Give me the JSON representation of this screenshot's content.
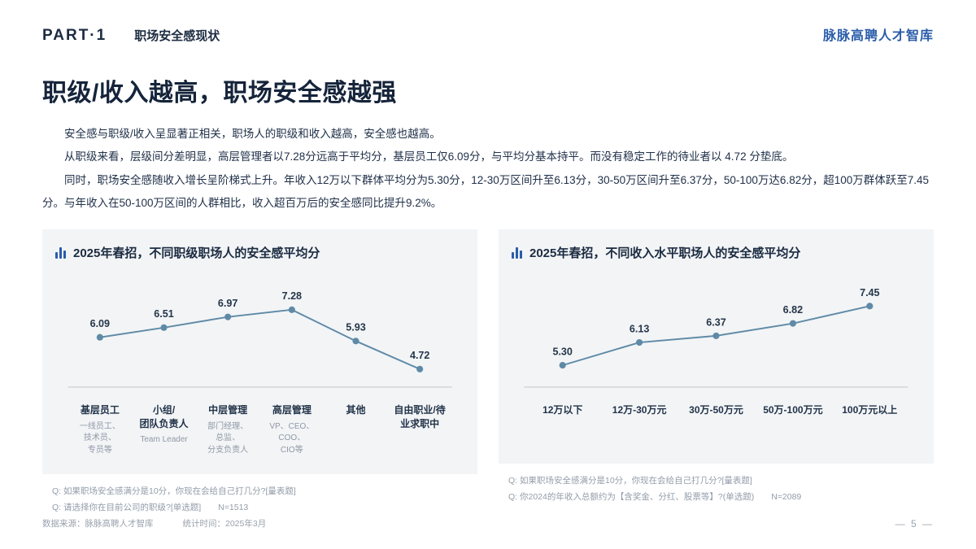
{
  "header": {
    "part": "PART·1",
    "section": "职场安全感现状",
    "brand": "脉脉高聘人才智库"
  },
  "title": "职级/收入越高，职场安全感越强",
  "paragraphs": [
    "安全感与职级/收入呈显著正相关，职场人的职级和收入越高，安全感也越高。",
    "从职级来看，层级间分差明显，高层管理者以7.28分远高于平均分，基层员工仅6.09分，与平均分基本持平。而没有稳定工作的待业者以 4.72 分垫底。",
    "同时，职场安全感随收入增长呈阶梯式上升。年收入12万以下群体平均分为5.30分，12-30万区间升至6.13分，30-50万区间升至6.37分，50-100万达6.82分，超100万群体跃至7.45分。与年收入在50-100万区间的人群相比，收入超百万后的安全感同比提升9.2%。"
  ],
  "colors": {
    "accent_blue": "#2a5caa",
    "line": "#5f8aa6",
    "panel_bg": "#f2f4f6",
    "text_dark": "#1f2f44",
    "muted": "#939daa"
  },
  "chart_data": [
    {
      "type": "line",
      "title": "2025年春招，不同职级职场人的安全感平均分",
      "categories": [
        "基层员工",
        "小组/团队负责人",
        "中层管理",
        "高层管理",
        "其他",
        "自由职业/待\n业求职中"
      ],
      "sublabels": [
        "一线员工、技术员、\n专员等",
        "Team Leader",
        "部门经理、总监、\n分支负责人",
        "VP、CEO、COO、\nCIO等",
        "",
        ""
      ],
      "values": [
        6.09,
        6.51,
        6.97,
        7.28,
        5.93,
        4.72
      ],
      "ylim": [
        4.35,
        8.15
      ],
      "legend": "none",
      "grid": false,
      "notes": [
        "Q: 如果职场安全感满分是10分，你现在会给自己打几分?[量表题]",
        "Q: 请选择你在目前公司的职级?[单选题]　　N=1513"
      ]
    },
    {
      "type": "line",
      "title": "2025年春招，不同收入水平职场人的安全感平均分",
      "categories": [
        "12万以下",
        "12万-30万元",
        "30万-50万元",
        "50万-100万元",
        "100万元以上"
      ],
      "sublabels": [
        "",
        "",
        "",
        "",
        ""
      ],
      "values": [
        5.3,
        6.13,
        6.37,
        6.82,
        7.45
      ],
      "ylim": [
        4.85,
        8.05
      ],
      "legend": "none",
      "grid": false,
      "notes": [
        "Q: 如果职场安全感满分是10分，你现在会给自己打几分?[量表题]",
        "Q: 你2024的年收入总额约为【含奖金、分红、股票等】?(单选题)　　N=2089"
      ]
    }
  ],
  "footer": {
    "source": "数据来源：脉脉高聘人才智库",
    "time": "统计时间：2025年3月",
    "page": "— 5 —"
  }
}
